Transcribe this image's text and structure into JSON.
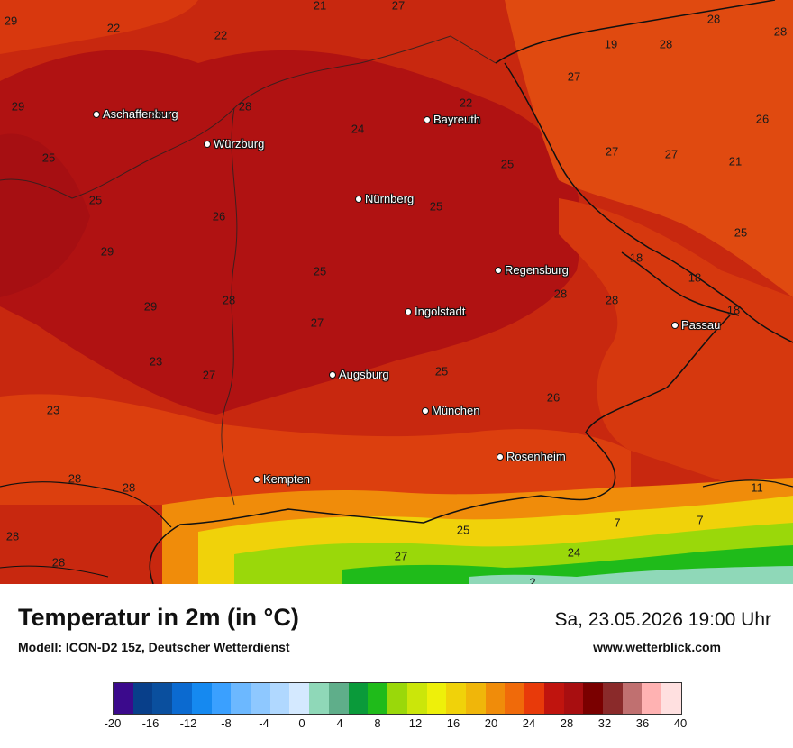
{
  "title": "Temperatur in 2m (in °C)",
  "model": "Modell: ICON-D2 15z, Deutscher Wetterdienst",
  "datetime": "Sa, 23.05.2026 19:00 Uhr",
  "website": "www.wetterblick.com",
  "cities": [
    {
      "id": "aschaffenburg",
      "name": "Aschaffenburg"
    },
    {
      "id": "wuerzburg",
      "name": "Würzburg"
    },
    {
      "id": "bayreuth",
      "name": "Bayreuth"
    },
    {
      "id": "nuernberg",
      "name": "Nürnberg"
    },
    {
      "id": "regensburg",
      "name": "Regensburg"
    },
    {
      "id": "ingolstadt",
      "name": "Ingolstadt"
    },
    {
      "id": "passau",
      "name": "Passau"
    },
    {
      "id": "augsburg",
      "name": "Augsburg"
    },
    {
      "id": "muenchen",
      "name": "München"
    },
    {
      "id": "rosenheim",
      "name": "Rosenheim"
    },
    {
      "id": "kempten",
      "name": "Kempten"
    }
  ],
  "temperature_labels": [
    "21",
    "27",
    "28",
    "28",
    "29",
    "22",
    "22",
    "19",
    "28",
    "29",
    "28",
    "29",
    "22",
    "27",
    "26",
    "24",
    "27",
    "27",
    "21",
    "25",
    "25",
    "25",
    "26",
    "25",
    "18",
    "25",
    "29",
    "29",
    "25",
    "28",
    "18",
    "28",
    "28",
    "18",
    "27",
    "23",
    "27",
    "25",
    "26",
    "23",
    "28",
    "28",
    "25",
    "27",
    "24",
    "28",
    "28",
    "11",
    "7",
    "7",
    "2"
  ],
  "colorscale": {
    "ticks": [
      "-20",
      "-16",
      "-12",
      "-8",
      "-4",
      "0",
      "4",
      "8",
      "12",
      "16",
      "20",
      "24",
      "28",
      "32",
      "36",
      "40"
    ],
    "colors": [
      "#3b0a8c",
      "#083f8a",
      "#0a4f9e",
      "#0b6ad0",
      "#1589f0",
      "#3aa0ff",
      "#6cb8ff",
      "#8ec8ff",
      "#b0d8ff",
      "#d4e9ff",
      "#8fd8b8",
      "#5fae8a",
      "#0a9a3a",
      "#1fbb1a",
      "#9ad80a",
      "#cbe60a",
      "#eef00a",
      "#f0d20a",
      "#f0b60a",
      "#f08c0a",
      "#f06a0a",
      "#e83a0a",
      "#c0140e",
      "#a80e10",
      "#7a0000",
      "#8a2a2a",
      "#c07070",
      "#ffb2b2",
      "#ffe0e0"
    ]
  }
}
